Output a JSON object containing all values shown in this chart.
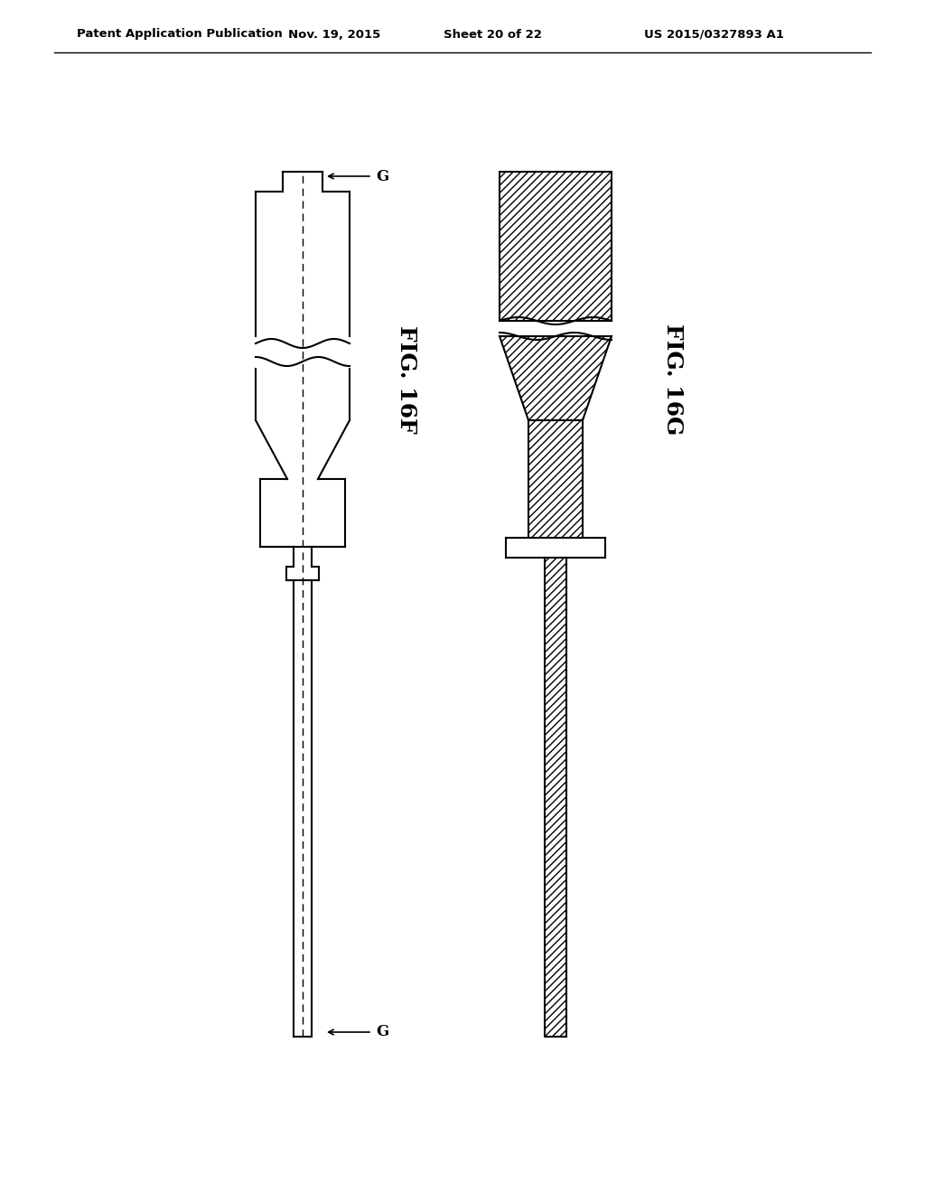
{
  "background_color": "#ffffff",
  "header_text": "Patent Application Publication",
  "header_date": "Nov. 19, 2015",
  "header_sheet": "Sheet 20 of 22",
  "header_patent": "US 2015/0327893 A1",
  "fig_label_16F": "FIG. 16F",
  "fig_label_16G": "FIG. 16G",
  "line_color": "#000000"
}
